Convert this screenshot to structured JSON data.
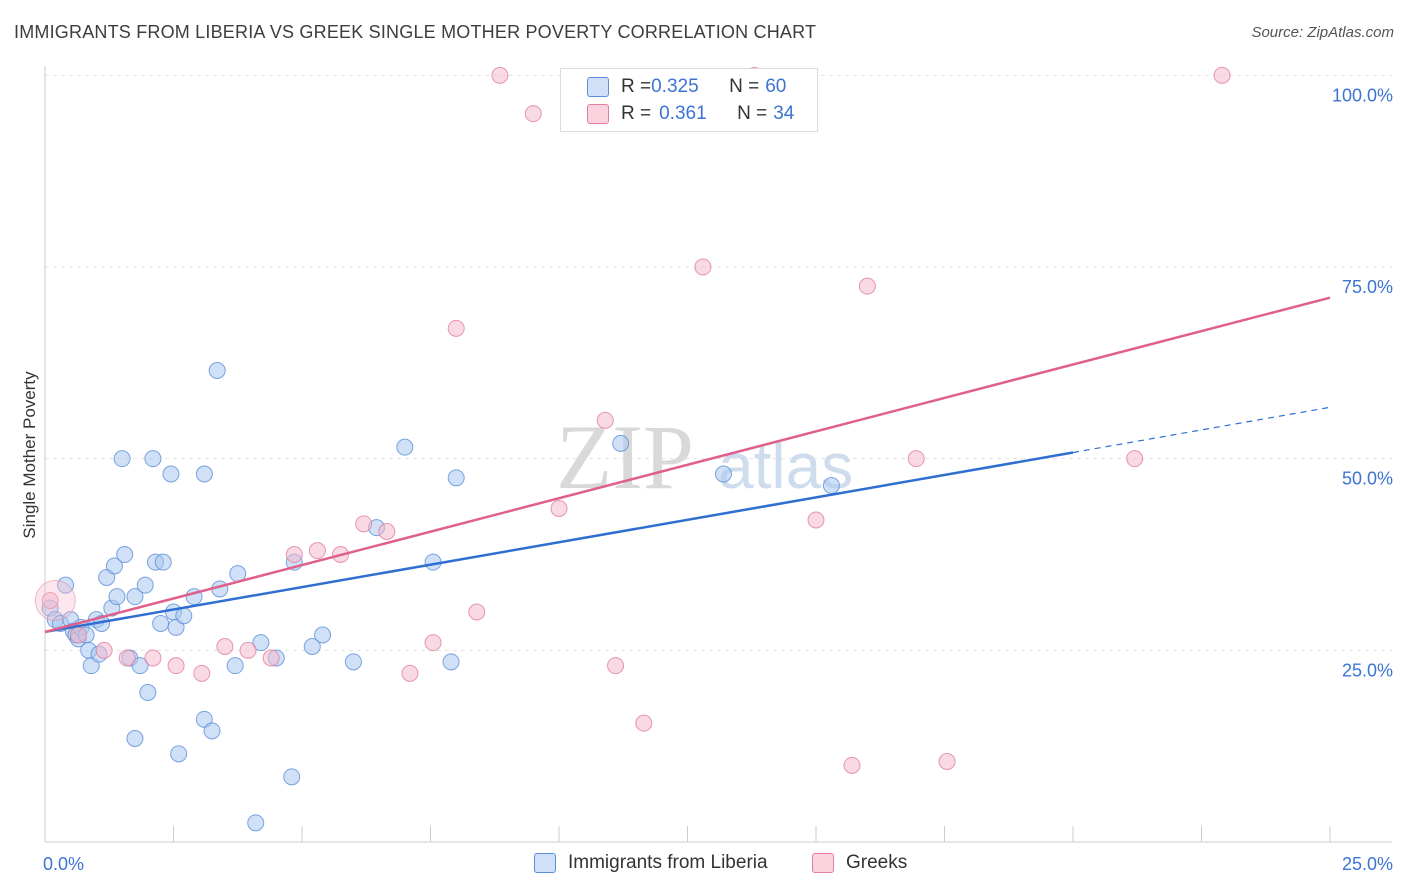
{
  "title": "IMMIGRANTS FROM LIBERIA VS GREEK SINGLE MOTHER POVERTY CORRELATION CHART",
  "source": "Source: ZipAtlas.com",
  "watermark": {
    "zip": "ZIP",
    "atlas": "atlas"
  },
  "legend": {
    "rows": [
      {
        "r_label": "R = ",
        "r_value": "0.325",
        "n_label": "N = ",
        "n_value": "60",
        "color": "#a9c8f0"
      },
      {
        "r_label": "R = ",
        "r_value": "0.361",
        "n_label": "N = ",
        "n_value": "34",
        "color": "#f4b9cc"
      }
    ]
  },
  "bottom_legend": [
    {
      "label": "Immigrants from Liberia",
      "color": "#a9c8f0"
    },
    {
      "label": "Greeks",
      "color": "#f4b9cc"
    }
  ],
  "colors": {
    "blue_fill": "#a9c8f0",
    "blue_stroke": "#5b8fd8",
    "blue_line": "#2e6fd1",
    "pink_fill": "#f4b9cc",
    "pink_stroke": "#e07fa0",
    "pink_line": "#e0608c",
    "tick_text": "#3b74d4",
    "grid": "#e3e3e3"
  },
  "chart_data": {
    "type": "scatter",
    "title": "IMMIGRANTS FROM LIBERIA VS GREEK SINGLE MOTHER POVERTY CORRELATION CHART",
    "xlabel": "",
    "ylabel": "Single Mother Poverty",
    "xlim": [
      0,
      25
    ],
    "ylim": [
      0,
      102
    ],
    "x_tick_labels": [
      "0.0%",
      "25.0%"
    ],
    "y_ticks": [
      25,
      50,
      75,
      100
    ],
    "y_tick_labels": [
      "25.0%",
      "50.0%",
      "75.0%",
      "100.0%"
    ],
    "grid": true,
    "legend_position": "top-center",
    "series": [
      {
        "name": "Immigrants from Liberia",
        "points": [
          [
            0.1,
            30.5
          ],
          [
            0.2,
            29.0
          ],
          [
            0.3,
            28.5
          ],
          [
            0.4,
            33.5
          ],
          [
            0.5,
            29.0
          ],
          [
            0.55,
            27.5
          ],
          [
            0.6,
            27.0
          ],
          [
            0.65,
            26.5
          ],
          [
            0.7,
            28.0
          ],
          [
            0.8,
            27.0
          ],
          [
            0.85,
            25.0
          ],
          [
            0.9,
            23.0
          ],
          [
            1.0,
            29.0
          ],
          [
            1.05,
            24.5
          ],
          [
            1.1,
            28.5
          ],
          [
            1.2,
            34.5
          ],
          [
            1.3,
            30.5
          ],
          [
            1.35,
            36.0
          ],
          [
            1.4,
            32.0
          ],
          [
            1.5,
            50.0
          ],
          [
            1.55,
            37.5
          ],
          [
            1.65,
            24.0
          ],
          [
            1.75,
            32.0
          ],
          [
            1.75,
            13.5
          ],
          [
            1.85,
            23.0
          ],
          [
            1.95,
            33.5
          ],
          [
            2.0,
            19.5
          ],
          [
            2.1,
            50.0
          ],
          [
            2.15,
            36.5
          ],
          [
            2.25,
            28.5
          ],
          [
            2.3,
            36.5
          ],
          [
            2.45,
            48.0
          ],
          [
            2.5,
            30.0
          ],
          [
            2.55,
            28.0
          ],
          [
            2.6,
            11.5
          ],
          [
            2.7,
            29.5
          ],
          [
            2.9,
            32.0
          ],
          [
            3.1,
            48.0
          ],
          [
            3.1,
            16.0
          ],
          [
            3.25,
            14.5
          ],
          [
            3.35,
            61.5
          ],
          [
            3.4,
            33.0
          ],
          [
            3.7,
            23.0
          ],
          [
            3.75,
            35.0
          ],
          [
            4.1,
            2.5
          ],
          [
            4.2,
            26.0
          ],
          [
            4.5,
            24.0
          ],
          [
            4.8,
            8.5
          ],
          [
            4.85,
            36.5
          ],
          [
            5.2,
            25.5
          ],
          [
            5.4,
            27.0
          ],
          [
            6.0,
            23.5
          ],
          [
            6.45,
            41.0
          ],
          [
            7.0,
            51.5
          ],
          [
            7.55,
            36.5
          ],
          [
            7.9,
            23.5
          ],
          [
            8.0,
            47.5
          ],
          [
            11.2,
            52.0
          ],
          [
            13.2,
            48.0
          ],
          [
            15.3,
            46.5
          ]
        ],
        "trend": {
          "x": [
            0,
            20,
            25
          ],
          "y": [
            27.4,
            50.8,
            56.7
          ],
          "solid_until_x": 20
        }
      },
      {
        "name": "Greeks",
        "points": [
          [
            0.1,
            31.5
          ],
          [
            0.65,
            27.0
          ],
          [
            1.15,
            25.0
          ],
          [
            1.6,
            24.0
          ],
          [
            2.1,
            24.0
          ],
          [
            2.55,
            23.0
          ],
          [
            3.05,
            22.0
          ],
          [
            3.5,
            25.5
          ],
          [
            3.95,
            25.0
          ],
          [
            4.4,
            24.0
          ],
          [
            4.85,
            37.5
          ],
          [
            5.3,
            38.0
          ],
          [
            5.75,
            37.5
          ],
          [
            6.2,
            41.5
          ],
          [
            6.65,
            40.5
          ],
          [
            7.1,
            22.0
          ],
          [
            7.55,
            26.0
          ],
          [
            8.0,
            67.0
          ],
          [
            8.4,
            30.0
          ],
          [
            8.85,
            100.0
          ],
          [
            9.5,
            95.0
          ],
          [
            10.0,
            43.5
          ],
          [
            10.9,
            55.0
          ],
          [
            11.1,
            23.0
          ],
          [
            11.65,
            15.5
          ],
          [
            12.8,
            75.0
          ],
          [
            13.8,
            100.0
          ],
          [
            15.0,
            42.0
          ],
          [
            15.7,
            10.0
          ],
          [
            16.0,
            72.5
          ],
          [
            16.95,
            50.0
          ],
          [
            17.55,
            10.5
          ],
          [
            21.2,
            50.0
          ],
          [
            22.9,
            100.0
          ]
        ],
        "trend": {
          "x": [
            0,
            25
          ],
          "y": [
            27.4,
            71.0
          ]
        }
      }
    ]
  }
}
